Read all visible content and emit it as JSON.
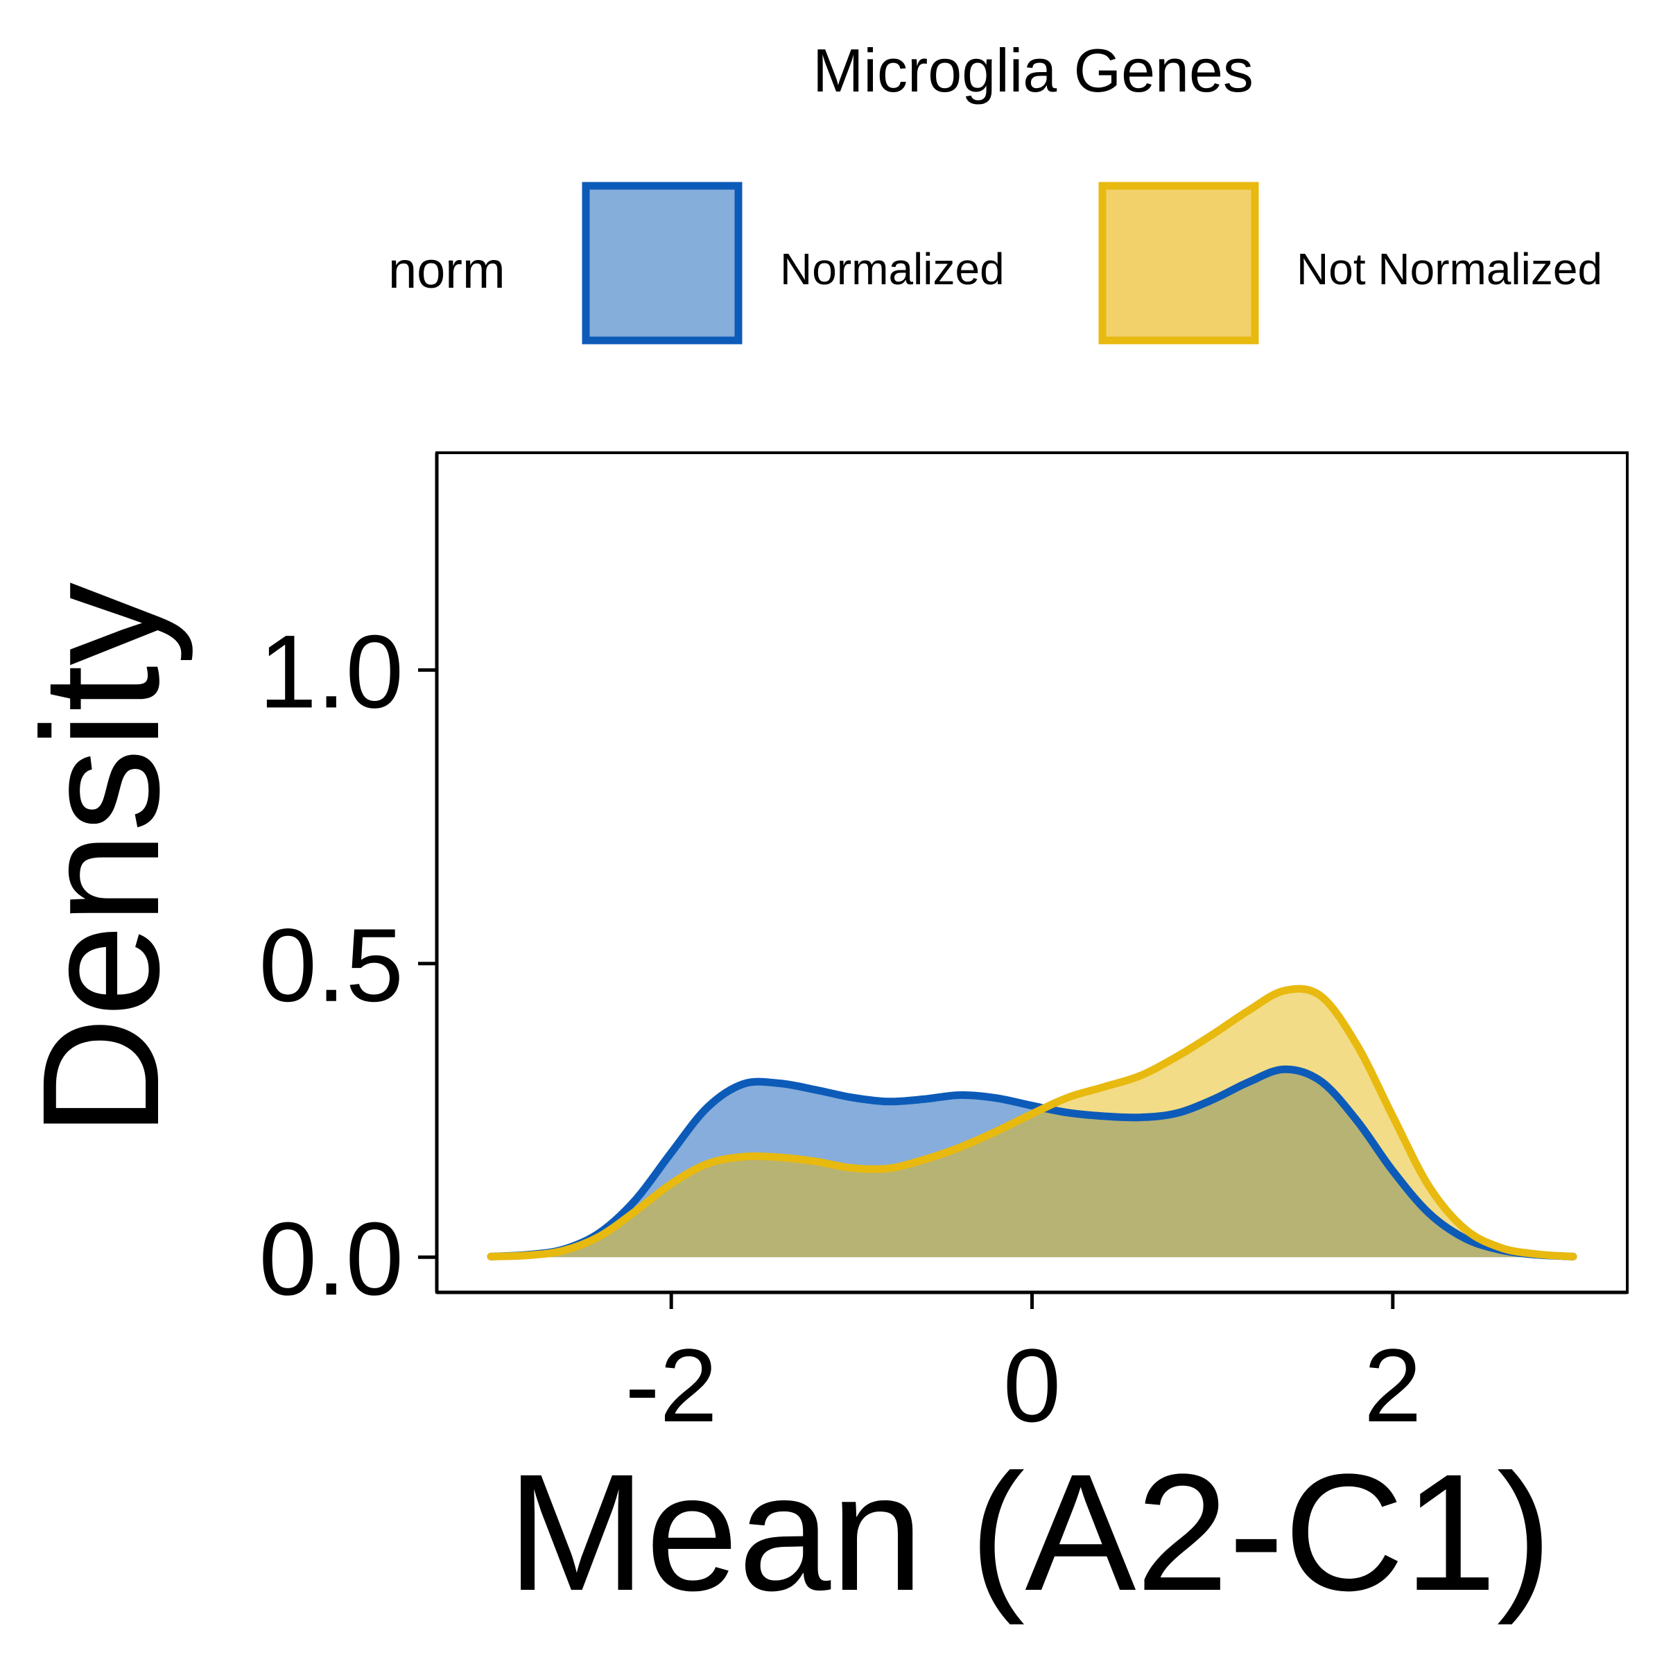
{
  "chart_data": {
    "type": "area",
    "title": "Microglia Genes",
    "xlabel": "Mean (A2-C1)",
    "ylabel": "Density",
    "xlim": [
      -3.3,
      3.3
    ],
    "ylim": [
      -0.06,
      1.37
    ],
    "x_ticks": [
      -2,
      0,
      2
    ],
    "x_tick_labels": [
      "-2",
      "0",
      "2"
    ],
    "y_ticks": [
      0.0,
      0.5,
      1.0
    ],
    "y_tick_labels": [
      "0.0",
      "0.5",
      "1.0"
    ],
    "grid": false,
    "legend": {
      "title": "norm",
      "position": "top",
      "entries": [
        "Normalized",
        "Not Normalized"
      ]
    },
    "series": [
      {
        "name": "Normalized",
        "stroke": "#0D5BB8",
        "fill": "#86AEDA",
        "x": [
          -3.0,
          -2.8,
          -2.6,
          -2.4,
          -2.2,
          -2.0,
          -1.8,
          -1.6,
          -1.4,
          -1.2,
          -1.0,
          -0.8,
          -0.6,
          -0.4,
          -0.2,
          0.0,
          0.2,
          0.4,
          0.6,
          0.8,
          1.0,
          1.2,
          1.4,
          1.6,
          1.8,
          2.0,
          2.2,
          2.4,
          2.6,
          2.8,
          3.0
        ],
        "y": [
          0.001,
          0.004,
          0.013,
          0.041,
          0.097,
          0.178,
          0.255,
          0.295,
          0.296,
          0.285,
          0.272,
          0.265,
          0.269,
          0.276,
          0.271,
          0.258,
          0.246,
          0.24,
          0.238,
          0.245,
          0.268,
          0.298,
          0.32,
          0.3,
          0.233,
          0.147,
          0.075,
          0.032,
          0.012,
          0.004,
          0.001
        ]
      },
      {
        "name": "Not Normalized",
        "stroke": "#E8B90F",
        "fill": "#F2D16B",
        "x": [
          -3.0,
          -2.8,
          -2.6,
          -2.4,
          -2.2,
          -2.0,
          -1.8,
          -1.6,
          -1.4,
          -1.2,
          -1.0,
          -0.8,
          -0.6,
          -0.4,
          -0.2,
          0.0,
          0.2,
          0.4,
          0.6,
          0.8,
          1.0,
          1.2,
          1.4,
          1.6,
          1.8,
          2.0,
          2.2,
          2.4,
          2.6,
          2.8,
          3.0
        ],
        "y": [
          0.001,
          0.003,
          0.011,
          0.035,
          0.078,
          0.125,
          0.159,
          0.171,
          0.17,
          0.163,
          0.152,
          0.151,
          0.166,
          0.187,
          0.214,
          0.244,
          0.272,
          0.29,
          0.309,
          0.341,
          0.379,
          0.42,
          0.454,
          0.445,
          0.362,
          0.24,
          0.121,
          0.048,
          0.016,
          0.005,
          0.001
        ]
      }
    ]
  }
}
